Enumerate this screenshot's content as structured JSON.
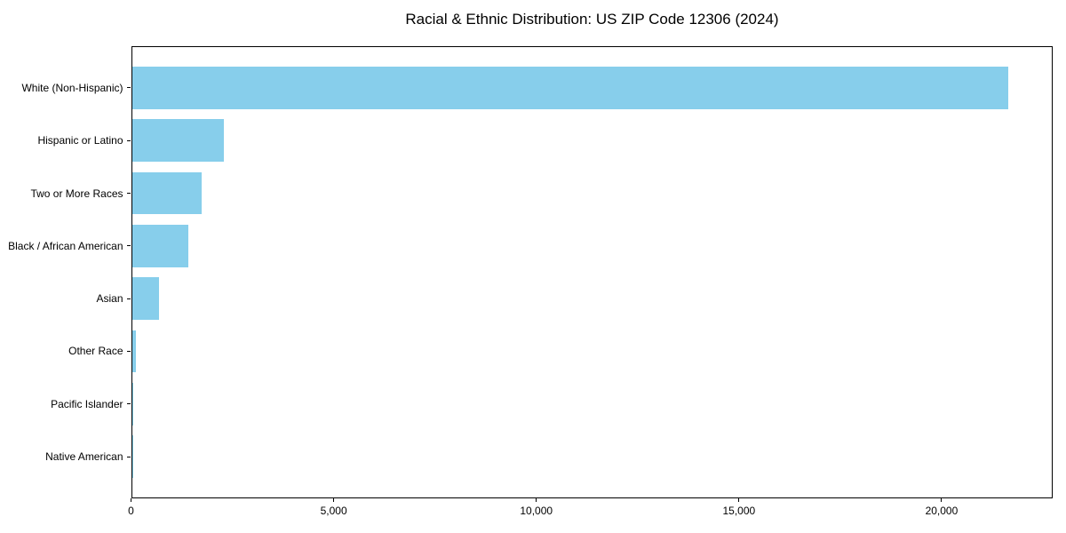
{
  "title": "Racial & Ethnic Distribution: US ZIP Code 12306 (2024)",
  "colors": {
    "bar": "#87CEEB",
    "axis": "#000000",
    "text": "#000000",
    "background": "#ffffff"
  },
  "chart_data": {
    "type": "bar",
    "orientation": "horizontal",
    "title": "Racial & Ethnic Distribution: US ZIP Code 12306 (2024)",
    "categories": [
      "White (Non-Hispanic)",
      "Hispanic or Latino",
      "Two or More Races",
      "Black / African American",
      "Asian",
      "Other Race",
      "Pacific Islander",
      "Native American"
    ],
    "values": [
      21630,
      2270,
      1720,
      1395,
      675,
      90,
      20,
      5
    ],
    "xlabel": "",
    "ylabel": "",
    "xlim": [
      0,
      22730
    ],
    "xticks": [
      0,
      5000,
      10000,
      15000,
      20000
    ],
    "xtick_labels": [
      "0",
      "5,000",
      "10,000",
      "15,000",
      "20,000"
    ],
    "bar_color": "#87CEEB",
    "grid": false,
    "legend": null
  }
}
